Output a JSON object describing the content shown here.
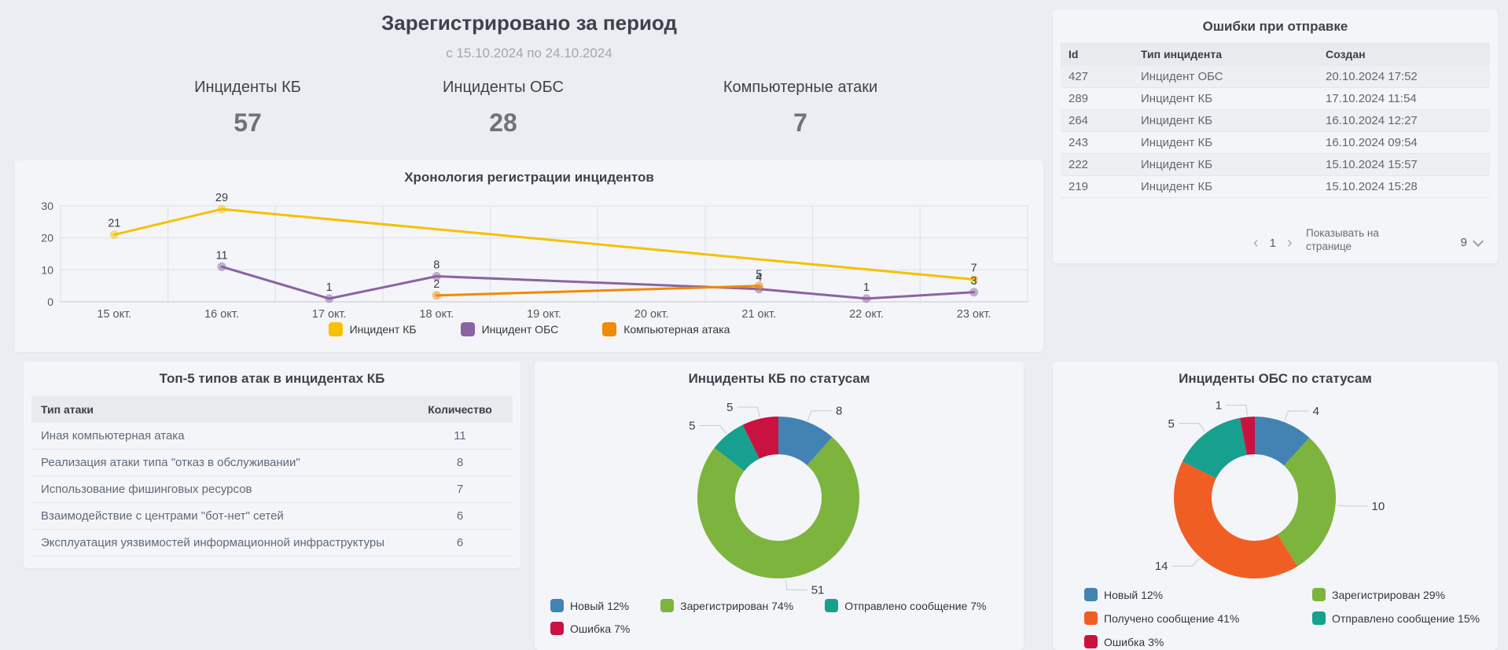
{
  "header": {
    "title": "Зарегистрировано за период",
    "subtitle": "с 15.10.2024 по 24.10.2024",
    "stats": [
      {
        "label": "Инциденты КБ",
        "value": "57"
      },
      {
        "label": "Инциденты ОБС",
        "value": "28"
      },
      {
        "label": "Компьютерные атаки",
        "value": "7"
      }
    ]
  },
  "errors_panel": {
    "title": "Ошибки при отправке",
    "columns": [
      "Id",
      "Тип инцидента",
      "Создан"
    ],
    "rows": [
      [
        "427",
        "Инцидент ОБС",
        "20.10.2024 17:52"
      ],
      [
        "289",
        "Инцидент КБ",
        "17.10.2024 11:54"
      ],
      [
        "264",
        "Инцидент КБ",
        "16.10.2024 12:27"
      ],
      [
        "243",
        "Инцидент КБ",
        "16.10.2024 09:54"
      ],
      [
        "222",
        "Инцидент КБ",
        "15.10.2024 15:57"
      ],
      [
        "219",
        "Инцидент КБ",
        "15.10.2024 15:28"
      ]
    ],
    "pagination": {
      "prev": "‹",
      "page": "1",
      "next": "›",
      "page_size_label": "Показывать на странице",
      "page_size": "9"
    }
  },
  "attack_table": {
    "title": "Топ-5 типов атак в инцидентах КБ",
    "columns": [
      "Тип атаки",
      "Количество"
    ],
    "rows": [
      [
        "Иная компьютерная атака",
        "11"
      ],
      [
        "Реализация атаки типа \"отказ в обслуживании\"",
        "8"
      ],
      [
        "Использование фишинговых ресурсов",
        "7"
      ],
      [
        "Взаимодействие с центрами \"бот-нет\" сетей",
        "6"
      ],
      [
        "Эксплуатация уязвимостей информационной инфраструктуры",
        "6"
      ]
    ]
  },
  "chart_data": [
    {
      "type": "line",
      "title": "Хронология регистрации инцидентов",
      "categories": [
        "15 окт.",
        "16 окт.",
        "17 окт.",
        "18 окт.",
        "19 окт.",
        "20 окт.",
        "21 окт.",
        "22 окт.",
        "23 окт."
      ],
      "ylim": [
        0,
        30
      ],
      "yticks": [
        0,
        10,
        20,
        30
      ],
      "grid": true,
      "legend_position": "bottom",
      "series": [
        {
          "name": "Инцидент КБ",
          "color": "#f5c101",
          "values": [
            21,
            29,
            null,
            null,
            null,
            null,
            null,
            null,
            7
          ]
        },
        {
          "name": "Инцидент ОБС",
          "color": "#8b63a5",
          "values": [
            null,
            11,
            1,
            8,
            null,
            null,
            4,
            1,
            3
          ]
        },
        {
          "name": "Компьютерная атака",
          "color": "#f08a07",
          "values": [
            null,
            null,
            null,
            2,
            null,
            null,
            5,
            null,
            null
          ]
        }
      ]
    },
    {
      "type": "pie",
      "title": "Инциденты КБ по статусам",
      "donut": true,
      "legend_position": "bottom",
      "slices": [
        {
          "label": "Новый",
          "value": 8,
          "percent": 12,
          "color": "#4383b4"
        },
        {
          "label": "Зарегистрирован",
          "value": 51,
          "percent": 74,
          "color": "#7db43e"
        },
        {
          "label": "Отправлено сообщение",
          "value": 5,
          "percent": 7,
          "color": "#17a08d"
        },
        {
          "label": "Ошибка",
          "value": 5,
          "percent": 7,
          "color": "#c91240"
        }
      ]
    },
    {
      "type": "pie",
      "title": "Инциденты ОБС по статусам",
      "donut": true,
      "legend_position": "bottom",
      "slices": [
        {
          "label": "Новый",
          "value": 4,
          "percent": 12,
          "color": "#4383b4"
        },
        {
          "label": "Зарегистрирован",
          "value": 10,
          "percent": 29,
          "color": "#7db43e"
        },
        {
          "label": "Получено сообщение",
          "value": 14,
          "percent": 41,
          "color": "#f05e23"
        },
        {
          "label": "Отправлено сообщение",
          "value": 5,
          "percent": 15,
          "color": "#17a08d"
        },
        {
          "label": "Ошибка",
          "value": 1,
          "percent": 3,
          "color": "#c91240"
        }
      ]
    }
  ]
}
